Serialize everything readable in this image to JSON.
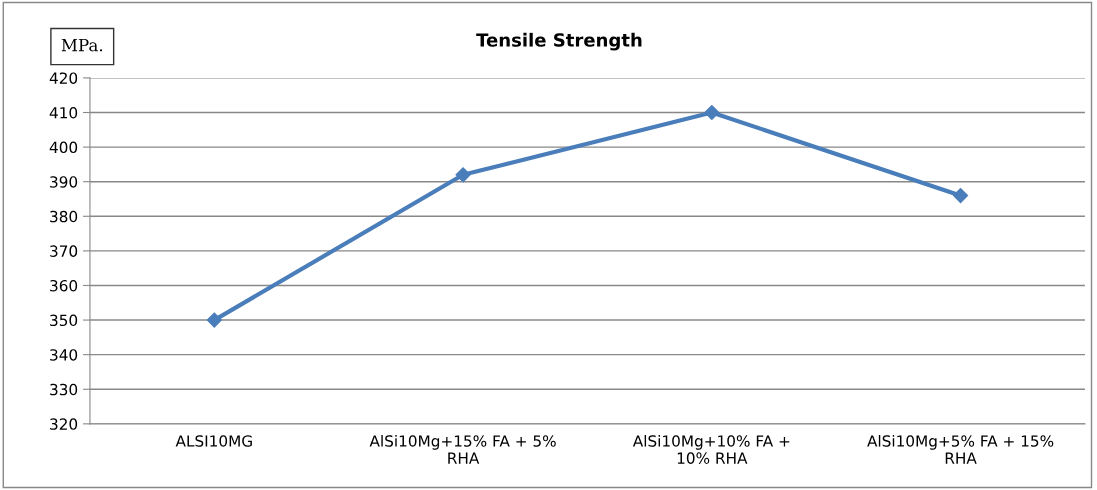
{
  "chart_data": {
    "type": "line",
    "title": "Tensile Strength",
    "ylabel": "MPa.",
    "categories": [
      "ALSI10MG",
      "AlSi10Mg+15% FA + 5%\nRHA",
      "AlSi10Mg+10% FA +\n10% RHA",
      "AlSi10Mg+5% FA + 15%\nRHA"
    ],
    "series": [
      {
        "color": "#4a7ebb",
        "values": [
          350,
          392,
          410,
          386
        ]
      }
    ],
    "ylim": [
      320,
      420
    ],
    "yticks": [
      320,
      330,
      340,
      350,
      360,
      370,
      380,
      390,
      400,
      410,
      420
    ],
    "grid": "y",
    "marker": "diamond",
    "line_style": "solid",
    "legend": false
  }
}
